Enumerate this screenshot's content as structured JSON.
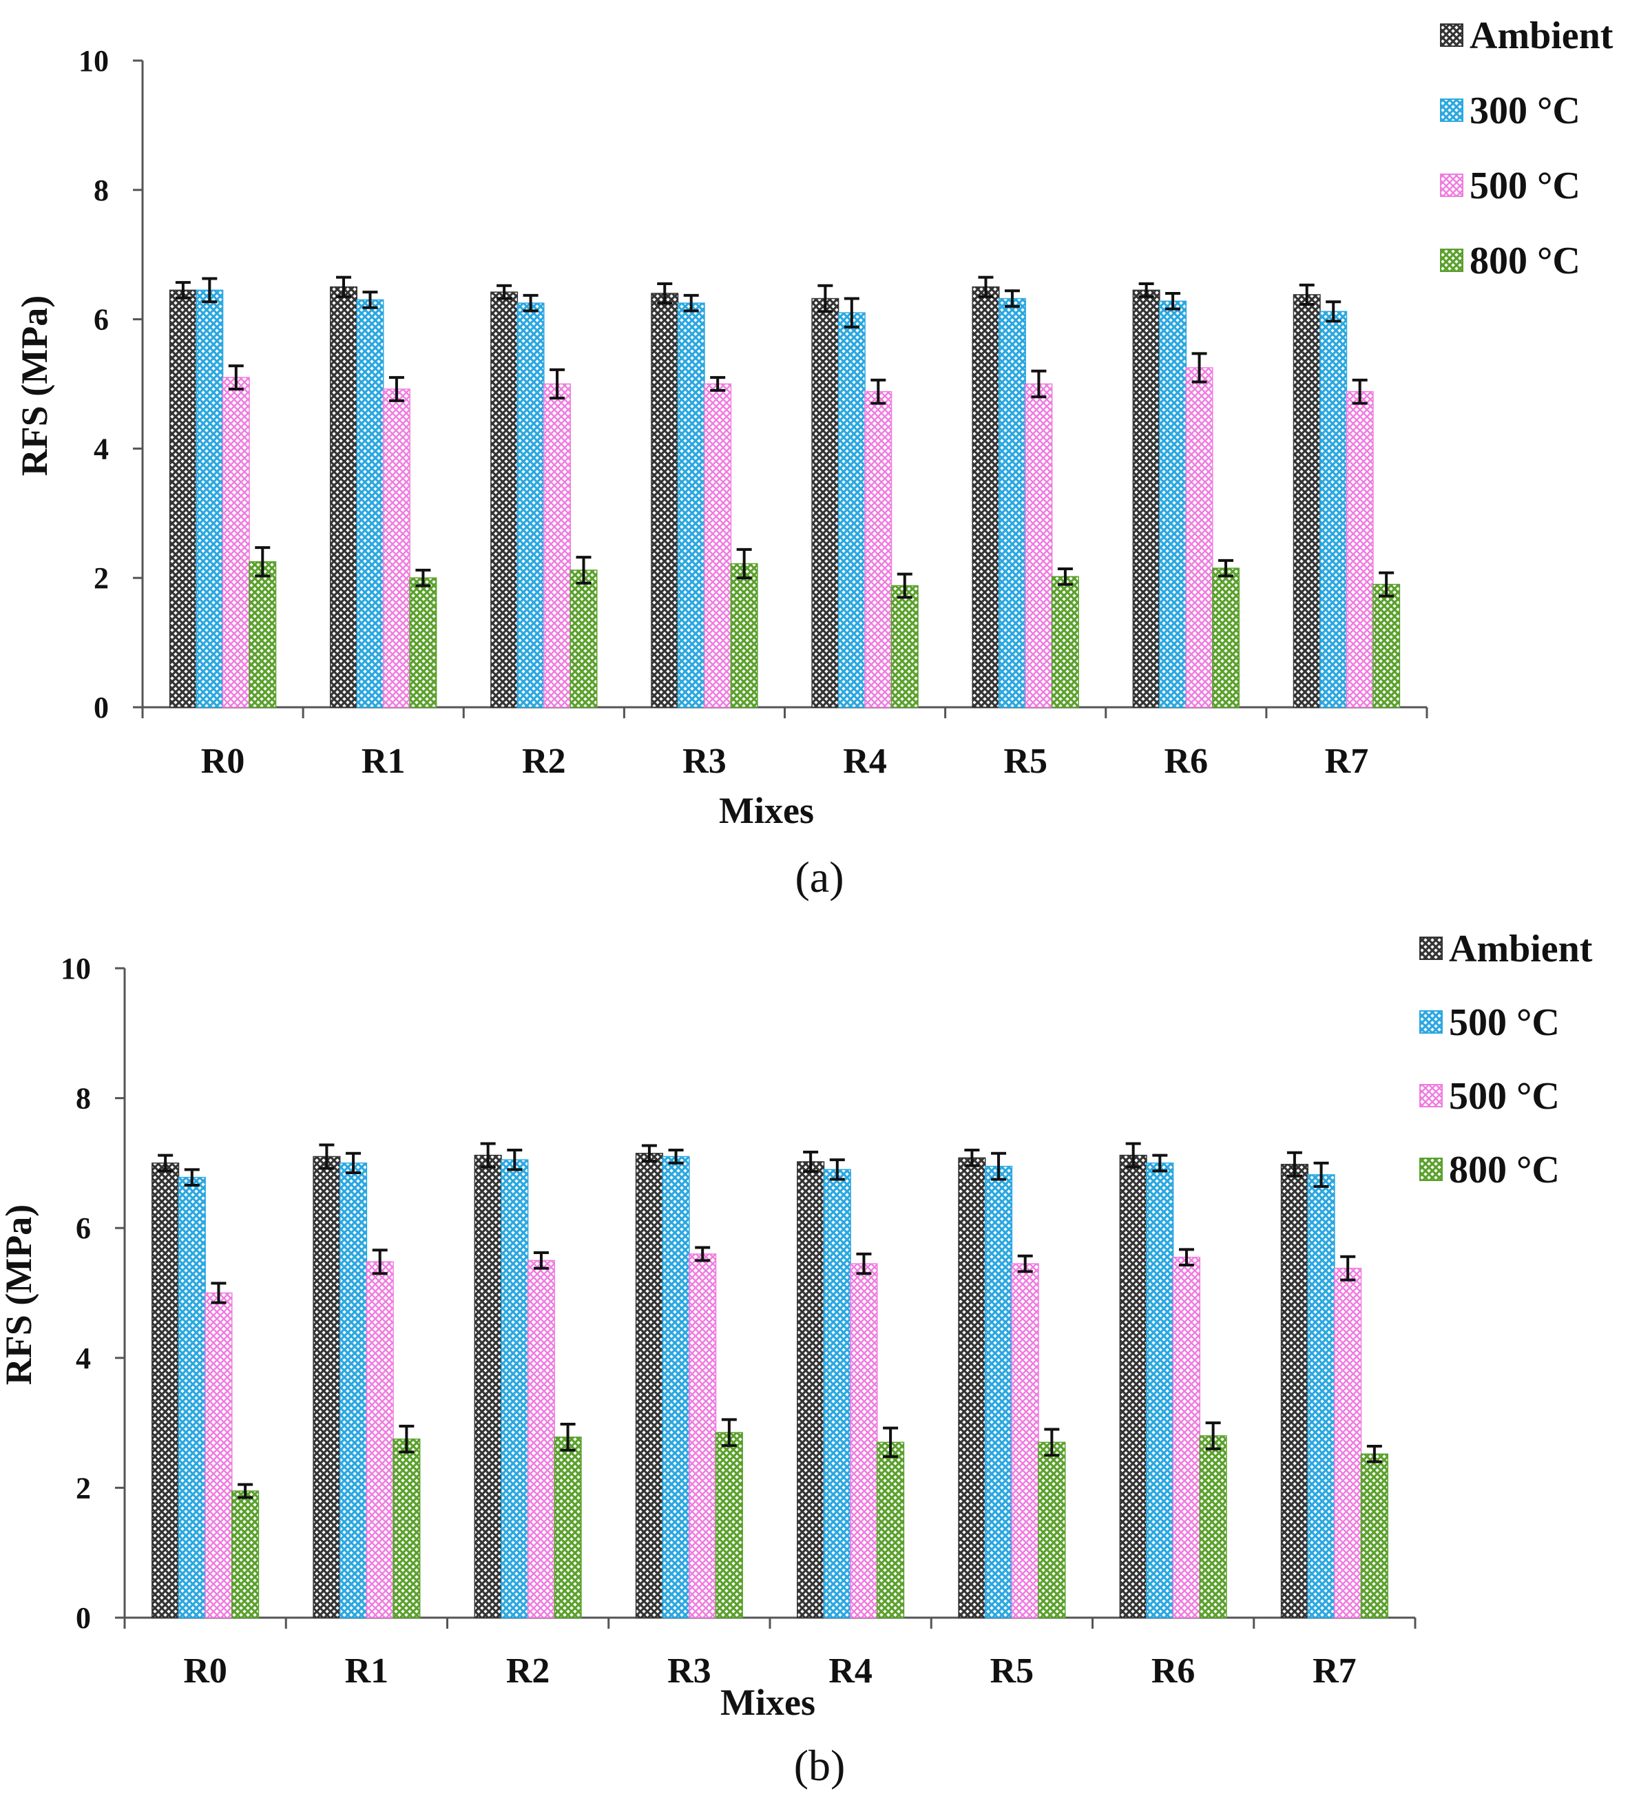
{
  "chart_data": [
    {
      "type": "bar",
      "panel_label": "(a)",
      "categories": [
        "R0",
        "R1",
        "R2",
        "R3",
        "R4",
        "R5",
        "R6",
        "R7"
      ],
      "series": [
        {
          "name": "Ambient",
          "color": "#333333",
          "values": [
            6.45,
            6.5,
            6.42,
            6.4,
            6.32,
            6.5,
            6.45,
            6.38
          ],
          "errors": [
            0.12,
            0.15,
            0.1,
            0.15,
            0.2,
            0.15,
            0.1,
            0.15
          ]
        },
        {
          "name": "300 °C",
          "color": "#2aa7e0",
          "values": [
            6.45,
            6.3,
            6.25,
            6.25,
            6.1,
            6.32,
            6.28,
            6.12
          ],
          "errors": [
            0.18,
            0.12,
            0.12,
            0.12,
            0.22,
            0.12,
            0.12,
            0.15
          ]
        },
        {
          "name": "500 °C",
          "color": "#f07ce0",
          "values": [
            5.1,
            4.92,
            5.0,
            5.0,
            4.88,
            5.0,
            5.25,
            4.88
          ],
          "errors": [
            0.18,
            0.18,
            0.22,
            0.1,
            0.18,
            0.2,
            0.22,
            0.18
          ]
        },
        {
          "name": "800 °C",
          "color": "#5aa02c",
          "values": [
            2.25,
            2.0,
            2.12,
            2.22,
            1.88,
            2.02,
            2.15,
            1.9
          ],
          "errors": [
            0.22,
            0.12,
            0.2,
            0.22,
            0.18,
            0.12,
            0.12,
            0.18
          ]
        }
      ],
      "xlabel": "Mixes",
      "ylabel": "RFS (MPa)",
      "ylim": [
        0,
        10
      ],
      "yticks": [
        "0",
        "2",
        "4",
        "6",
        "8",
        "10"
      ],
      "grid": false,
      "legend": "top-right"
    },
    {
      "type": "bar",
      "panel_label": "(b)",
      "categories": [
        "R0",
        "R1",
        "R2",
        "R3",
        "R4",
        "R5",
        "R6",
        "R7"
      ],
      "series": [
        {
          "name": "Ambient",
          "color": "#333333",
          "values": [
            7.0,
            7.1,
            7.12,
            7.15,
            7.02,
            7.08,
            7.12,
            6.98
          ],
          "errors": [
            0.12,
            0.18,
            0.18,
            0.12,
            0.15,
            0.12,
            0.18,
            0.18
          ]
        },
        {
          "name": "500 °C",
          "color": "#2aa7e0",
          "values": [
            6.78,
            7.0,
            7.05,
            7.1,
            6.9,
            6.95,
            7.0,
            6.82
          ],
          "errors": [
            0.12,
            0.15,
            0.15,
            0.1,
            0.15,
            0.2,
            0.12,
            0.18
          ]
        },
        {
          "name": "500 °C",
          "color": "#f07ce0",
          "values": [
            5.0,
            5.48,
            5.5,
            5.6,
            5.45,
            5.45,
            5.55,
            5.38
          ],
          "errors": [
            0.15,
            0.18,
            0.12,
            0.1,
            0.15,
            0.12,
            0.12,
            0.18
          ]
        },
        {
          "name": "800 °C",
          "color": "#5aa02c",
          "values": [
            1.95,
            2.75,
            2.78,
            2.85,
            2.7,
            2.7,
            2.8,
            2.52
          ],
          "errors": [
            0.1,
            0.2,
            0.2,
            0.2,
            0.22,
            0.2,
            0.2,
            0.12
          ]
        }
      ],
      "xlabel": "Mixes",
      "ylabel": "RFS (MPa)",
      "ylim": [
        0,
        10
      ],
      "yticks": [
        "0",
        "2",
        "4",
        "6",
        "8",
        "10"
      ],
      "grid": false,
      "legend": "top-right"
    }
  ]
}
